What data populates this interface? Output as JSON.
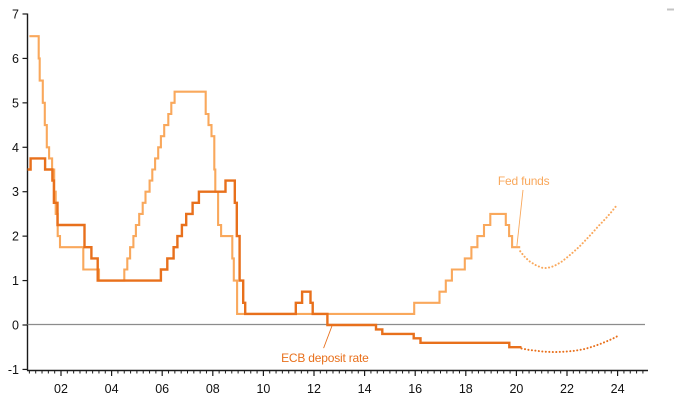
{
  "chart_data": {
    "type": "line",
    "title": "",
    "xlabel": "",
    "ylabel": "",
    "x_axis": {
      "range": [
        2000.68,
        2025.2
      ],
      "major_ticks": [
        {
          "label": "02",
          "year": 2002
        },
        {
          "label": "04",
          "year": 2004
        },
        {
          "label": "06",
          "year": 2006
        },
        {
          "label": "08",
          "year": 2008
        },
        {
          "label": "10",
          "year": 2010
        },
        {
          "label": "12",
          "year": 2012
        },
        {
          "label": "14",
          "year": 2014
        },
        {
          "label": "16",
          "year": 2016
        },
        {
          "label": "18",
          "year": 2018
        },
        {
          "label": "20",
          "year": 2020
        },
        {
          "label": "22",
          "year": 2022
        },
        {
          "label": "24",
          "year": 2024
        }
      ],
      "minor_tick_step_years": 0.25
    },
    "y_axis": {
      "range": [
        -1,
        7
      ],
      "ticks": [
        -1,
        0,
        1,
        2,
        3,
        4,
        5,
        6,
        7
      ]
    },
    "zero_line": true,
    "zero_line_color": "#8c8c8c",
    "axis_color": "#1a1a1a",
    "series": [
      {
        "name": "Fed funds",
        "color": "#F9A85C",
        "style": "step",
        "points": [
          [
            2000.75,
            6.5
          ],
          [
            2001.12,
            6.0
          ],
          [
            2001.16,
            5.5
          ],
          [
            2001.28,
            5.0
          ],
          [
            2001.36,
            4.5
          ],
          [
            2001.44,
            4.0
          ],
          [
            2001.53,
            3.75
          ],
          [
            2001.65,
            3.5
          ],
          [
            2001.73,
            3.0
          ],
          [
            2001.79,
            2.5
          ],
          [
            2001.87,
            2.0
          ],
          [
            2001.96,
            1.75
          ],
          [
            2002.88,
            1.25
          ],
          [
            2003.5,
            1.0
          ],
          [
            2004.5,
            1.25
          ],
          [
            2004.62,
            1.5
          ],
          [
            2004.73,
            1.75
          ],
          [
            2004.86,
            2.0
          ],
          [
            2004.96,
            2.25
          ],
          [
            2005.09,
            2.5
          ],
          [
            2005.23,
            2.75
          ],
          [
            2005.34,
            3.0
          ],
          [
            2005.5,
            3.25
          ],
          [
            2005.61,
            3.5
          ],
          [
            2005.72,
            3.75
          ],
          [
            2005.84,
            4.0
          ],
          [
            2005.95,
            4.25
          ],
          [
            2006.08,
            4.5
          ],
          [
            2006.24,
            4.75
          ],
          [
            2006.36,
            5.0
          ],
          [
            2006.49,
            5.25
          ],
          [
            2007.72,
            4.75
          ],
          [
            2007.83,
            4.5
          ],
          [
            2007.95,
            4.25
          ],
          [
            2008.06,
            3.5
          ],
          [
            2008.1,
            3.0
          ],
          [
            2008.21,
            2.25
          ],
          [
            2008.33,
            2.0
          ],
          [
            2008.77,
            1.5
          ],
          [
            2008.83,
            1.0
          ],
          [
            2008.96,
            0.25
          ],
          [
            2015.96,
            0.5
          ],
          [
            2016.96,
            0.75
          ],
          [
            2017.21,
            1.0
          ],
          [
            2017.45,
            1.25
          ],
          [
            2017.96,
            1.5
          ],
          [
            2018.22,
            1.75
          ],
          [
            2018.46,
            2.0
          ],
          [
            2018.72,
            2.25
          ],
          [
            2018.97,
            2.5
          ],
          [
            2019.58,
            2.25
          ],
          [
            2019.71,
            2.0
          ],
          [
            2019.83,
            1.75
          ]
        ],
        "end_year": 2020.15,
        "forecast_style": "dotted",
        "forecast_points": [
          [
            2020.15,
            1.66
          ],
          [
            2020.3,
            1.55
          ],
          [
            2020.5,
            1.44
          ],
          [
            2020.75,
            1.35
          ],
          [
            2021.0,
            1.29
          ],
          [
            2021.2,
            1.28
          ],
          [
            2021.4,
            1.31
          ],
          [
            2021.6,
            1.36
          ],
          [
            2021.8,
            1.43
          ],
          [
            2022.0,
            1.52
          ],
          [
            2022.25,
            1.64
          ],
          [
            2022.5,
            1.77
          ],
          [
            2022.75,
            1.92
          ],
          [
            2023.0,
            2.07
          ],
          [
            2023.25,
            2.23
          ],
          [
            2023.5,
            2.38
          ],
          [
            2023.75,
            2.54
          ],
          [
            2024.0,
            2.72
          ]
        ]
      },
      {
        "name": "ECB deposit rate",
        "color": "#E8701C",
        "style": "step",
        "points": [
          [
            2000.68,
            3.5
          ],
          [
            2000.8,
            3.75
          ],
          [
            2001.37,
            3.5
          ],
          [
            2001.66,
            3.25
          ],
          [
            2001.72,
            2.75
          ],
          [
            2001.86,
            2.25
          ],
          [
            2002.93,
            1.75
          ],
          [
            2003.2,
            1.5
          ],
          [
            2003.45,
            1.0
          ],
          [
            2005.95,
            1.25
          ],
          [
            2006.2,
            1.5
          ],
          [
            2006.45,
            1.75
          ],
          [
            2006.6,
            2.0
          ],
          [
            2006.78,
            2.25
          ],
          [
            2006.95,
            2.5
          ],
          [
            2007.2,
            2.75
          ],
          [
            2007.45,
            3.0
          ],
          [
            2008.5,
            3.25
          ],
          [
            2008.87,
            2.75
          ],
          [
            2008.95,
            2.0
          ],
          [
            2009.06,
            1.0
          ],
          [
            2009.2,
            0.5
          ],
          [
            2009.28,
            0.25
          ],
          [
            2011.28,
            0.5
          ],
          [
            2011.53,
            0.75
          ],
          [
            2011.86,
            0.5
          ],
          [
            2011.95,
            0.25
          ],
          [
            2012.53,
            0.0
          ],
          [
            2014.45,
            -0.1
          ],
          [
            2014.7,
            -0.2
          ],
          [
            2015.94,
            -0.3
          ],
          [
            2016.21,
            -0.4
          ],
          [
            2019.72,
            -0.5
          ]
        ],
        "end_year": 2020.2,
        "forecast_style": "dotted",
        "forecast_points": [
          [
            2020.2,
            -0.53
          ],
          [
            2020.5,
            -0.56
          ],
          [
            2020.8,
            -0.58
          ],
          [
            2021.1,
            -0.6
          ],
          [
            2021.5,
            -0.61
          ],
          [
            2021.9,
            -0.6
          ],
          [
            2022.3,
            -0.58
          ],
          [
            2022.7,
            -0.54
          ],
          [
            2023.0,
            -0.49
          ],
          [
            2023.3,
            -0.43
          ],
          [
            2023.6,
            -0.36
          ],
          [
            2023.8,
            -0.31
          ],
          [
            2024.0,
            -0.25
          ]
        ]
      }
    ],
    "annotations": [
      {
        "text": "Fed funds",
        "color": "#F9A85C",
        "label_x_year": 2019.27,
        "label_y_value": 3.15,
        "pointer": {
          "x1_year": 2020.26,
          "y1_value": 3.04,
          "x2_year": 2020.02,
          "y2_value": 1.78
        }
      },
      {
        "text": "ECB deposit rate",
        "color": "#E8701C",
        "label_x_year": 2010.7,
        "label_y_value": -0.83,
        "pointer": {
          "x1_year": 2012.71,
          "y1_value": -0.02,
          "x2_year": 2012.38,
          "y2_value": -0.52
        }
      }
    ],
    "legend_position": "inline-annotations",
    "grid": false
  },
  "misc": {
    "corner_artifact_color": "#c4c4c4"
  }
}
